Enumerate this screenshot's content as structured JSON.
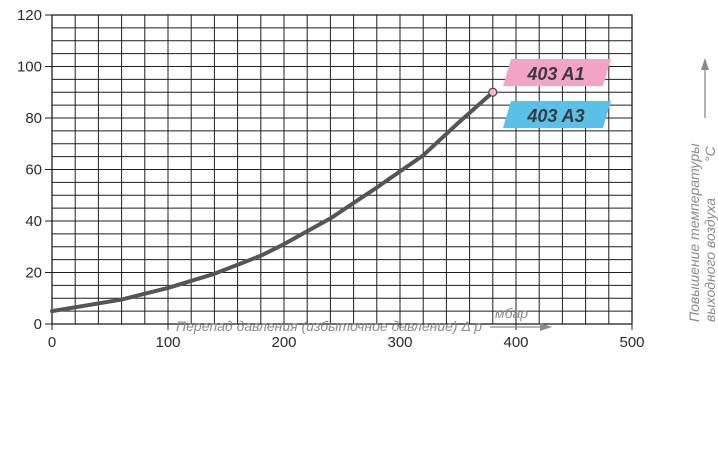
{
  "chart_data": {
    "type": "line",
    "x": [
      0,
      60,
      100,
      140,
      180,
      200,
      240,
      280,
      320,
      350,
      380
    ],
    "series": [
      {
        "values": [
          5,
          9.5,
          14,
          19.5,
          26.5,
          31,
          41,
          53,
          65.5,
          78,
          90
        ]
      }
    ],
    "xlim": [
      0,
      500
    ],
    "ylim": [
      0,
      120
    ],
    "x_ticks": [
      "0",
      "100",
      "200",
      "300",
      "400",
      "500"
    ],
    "y_ticks": [
      "0",
      "20",
      "40",
      "60",
      "80",
      "100",
      "120"
    ],
    "xlabel": "Перепад давления (избыточное давление) Δ p",
    "xunit": "мбар",
    "ylabel_line1": "Повышение температуры",
    "ylabel_line2": "выходного воздуха",
    "yunit": "°C",
    "grid": true,
    "models": [
      "403 A1",
      "403 A3"
    ],
    "colors": {
      "curve": "#555555",
      "grid": "#1f1f1f",
      "badge_a1": "#f2a3c6",
      "badge_a3": "#5bc0e8",
      "endpoint": "#f7b6cf"
    }
  }
}
